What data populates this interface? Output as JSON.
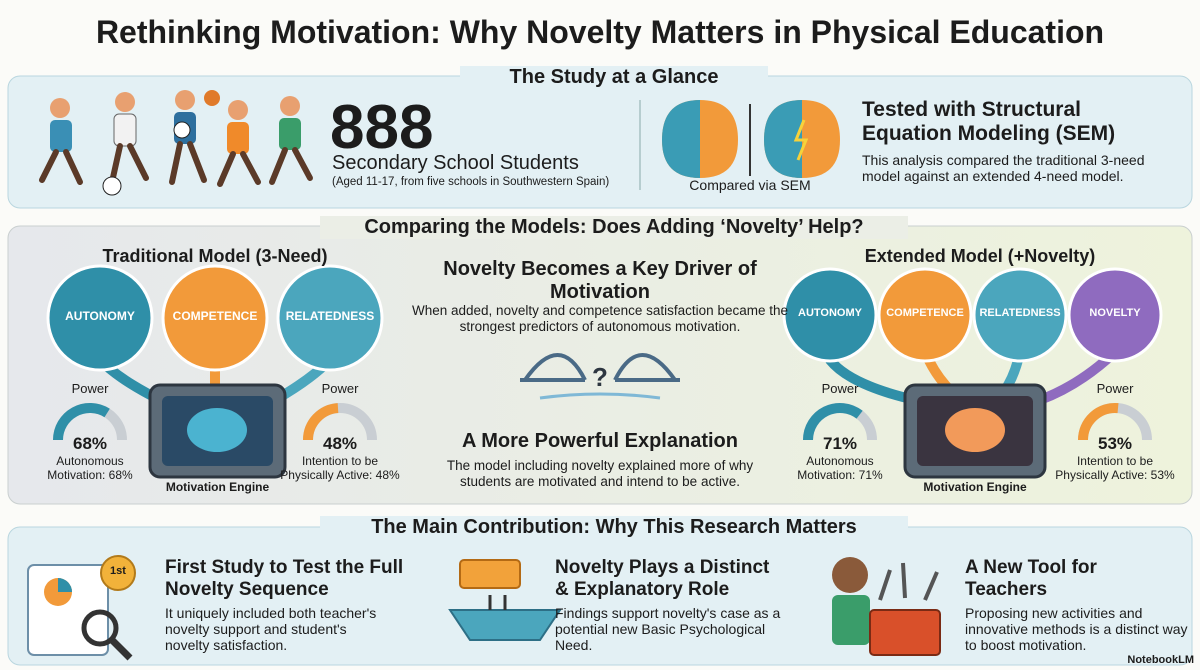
{
  "title": "Rethinking Motivation: Why Novelty Matters in Physical Education",
  "glance": {
    "heading": "The Study at a Glance",
    "count": "888",
    "count_label": "Secondary School Students",
    "count_note": "(Aged 11-17, from five schools in Southwestern Spain)",
    "compare_caption": "Compared via SEM",
    "sem_title": "Tested with Structural Equation Modeling (SEM)",
    "sem_text": "This analysis compared the traditional 3-need model against an extended 4-need model."
  },
  "models": {
    "heading": "Comparing the Models: Does Adding ‘Novelty’ Help?",
    "traditional": {
      "title": "Traditional Model (3-Need)",
      "needs": [
        "AUTONOMY",
        "COMPETENCE",
        "RELATEDNESS"
      ],
      "engine": "Motivation Engine",
      "gauges": [
        {
          "power": "Power",
          "value": 68,
          "label": "68%",
          "caption": "Autonomous Motivation: 68%"
        },
        {
          "power": "Power",
          "value": 48,
          "label": "48%",
          "caption": "Intention to be Physically Active: 48%"
        }
      ]
    },
    "center": {
      "title": "Novelty Becomes a Key Driver of Motivation",
      "text": "When added, novelty and competence satisfaction became the strongest predictors of autonomous motivation.",
      "bridge_mark": "?",
      "title2": "A More Powerful Explanation",
      "text2": "The model including novelty explained more of why students are motivated and intend to be active."
    },
    "extended": {
      "title": "Extended Model (+Novelty)",
      "needs": [
        "AUTONOMY",
        "COMPETENCE",
        "RELATEDNESS",
        "NOVELTY"
      ],
      "engine": "Motivation Engine",
      "gauges": [
        {
          "power": "Power",
          "value": 71,
          "label": "71%",
          "caption": "Autonomous Motivation: 71%"
        },
        {
          "power": "Power",
          "value": 53,
          "label": "53%",
          "caption": "Intention to be Physically Active: 53%"
        }
      ]
    }
  },
  "contribution": {
    "heading": "The Main Contribution: Why This Research Matters",
    "badge": "1st",
    "items": [
      {
        "title": "First Study to Test the Full Novelty Sequence",
        "text": "It uniquely included both teacher's novelty support and student's novelty satisfaction."
      },
      {
        "title": "Novelty Plays a Distinct & Explanatory Role",
        "text": "Findings support novelty's case as a potential new Basic Psychological Need."
      },
      {
        "title": "A New Tool for Teachers",
        "text": "Proposing new activities and innovative methods is a distinct way to boost motivation."
      }
    ]
  },
  "brand": "NotebookLM"
}
